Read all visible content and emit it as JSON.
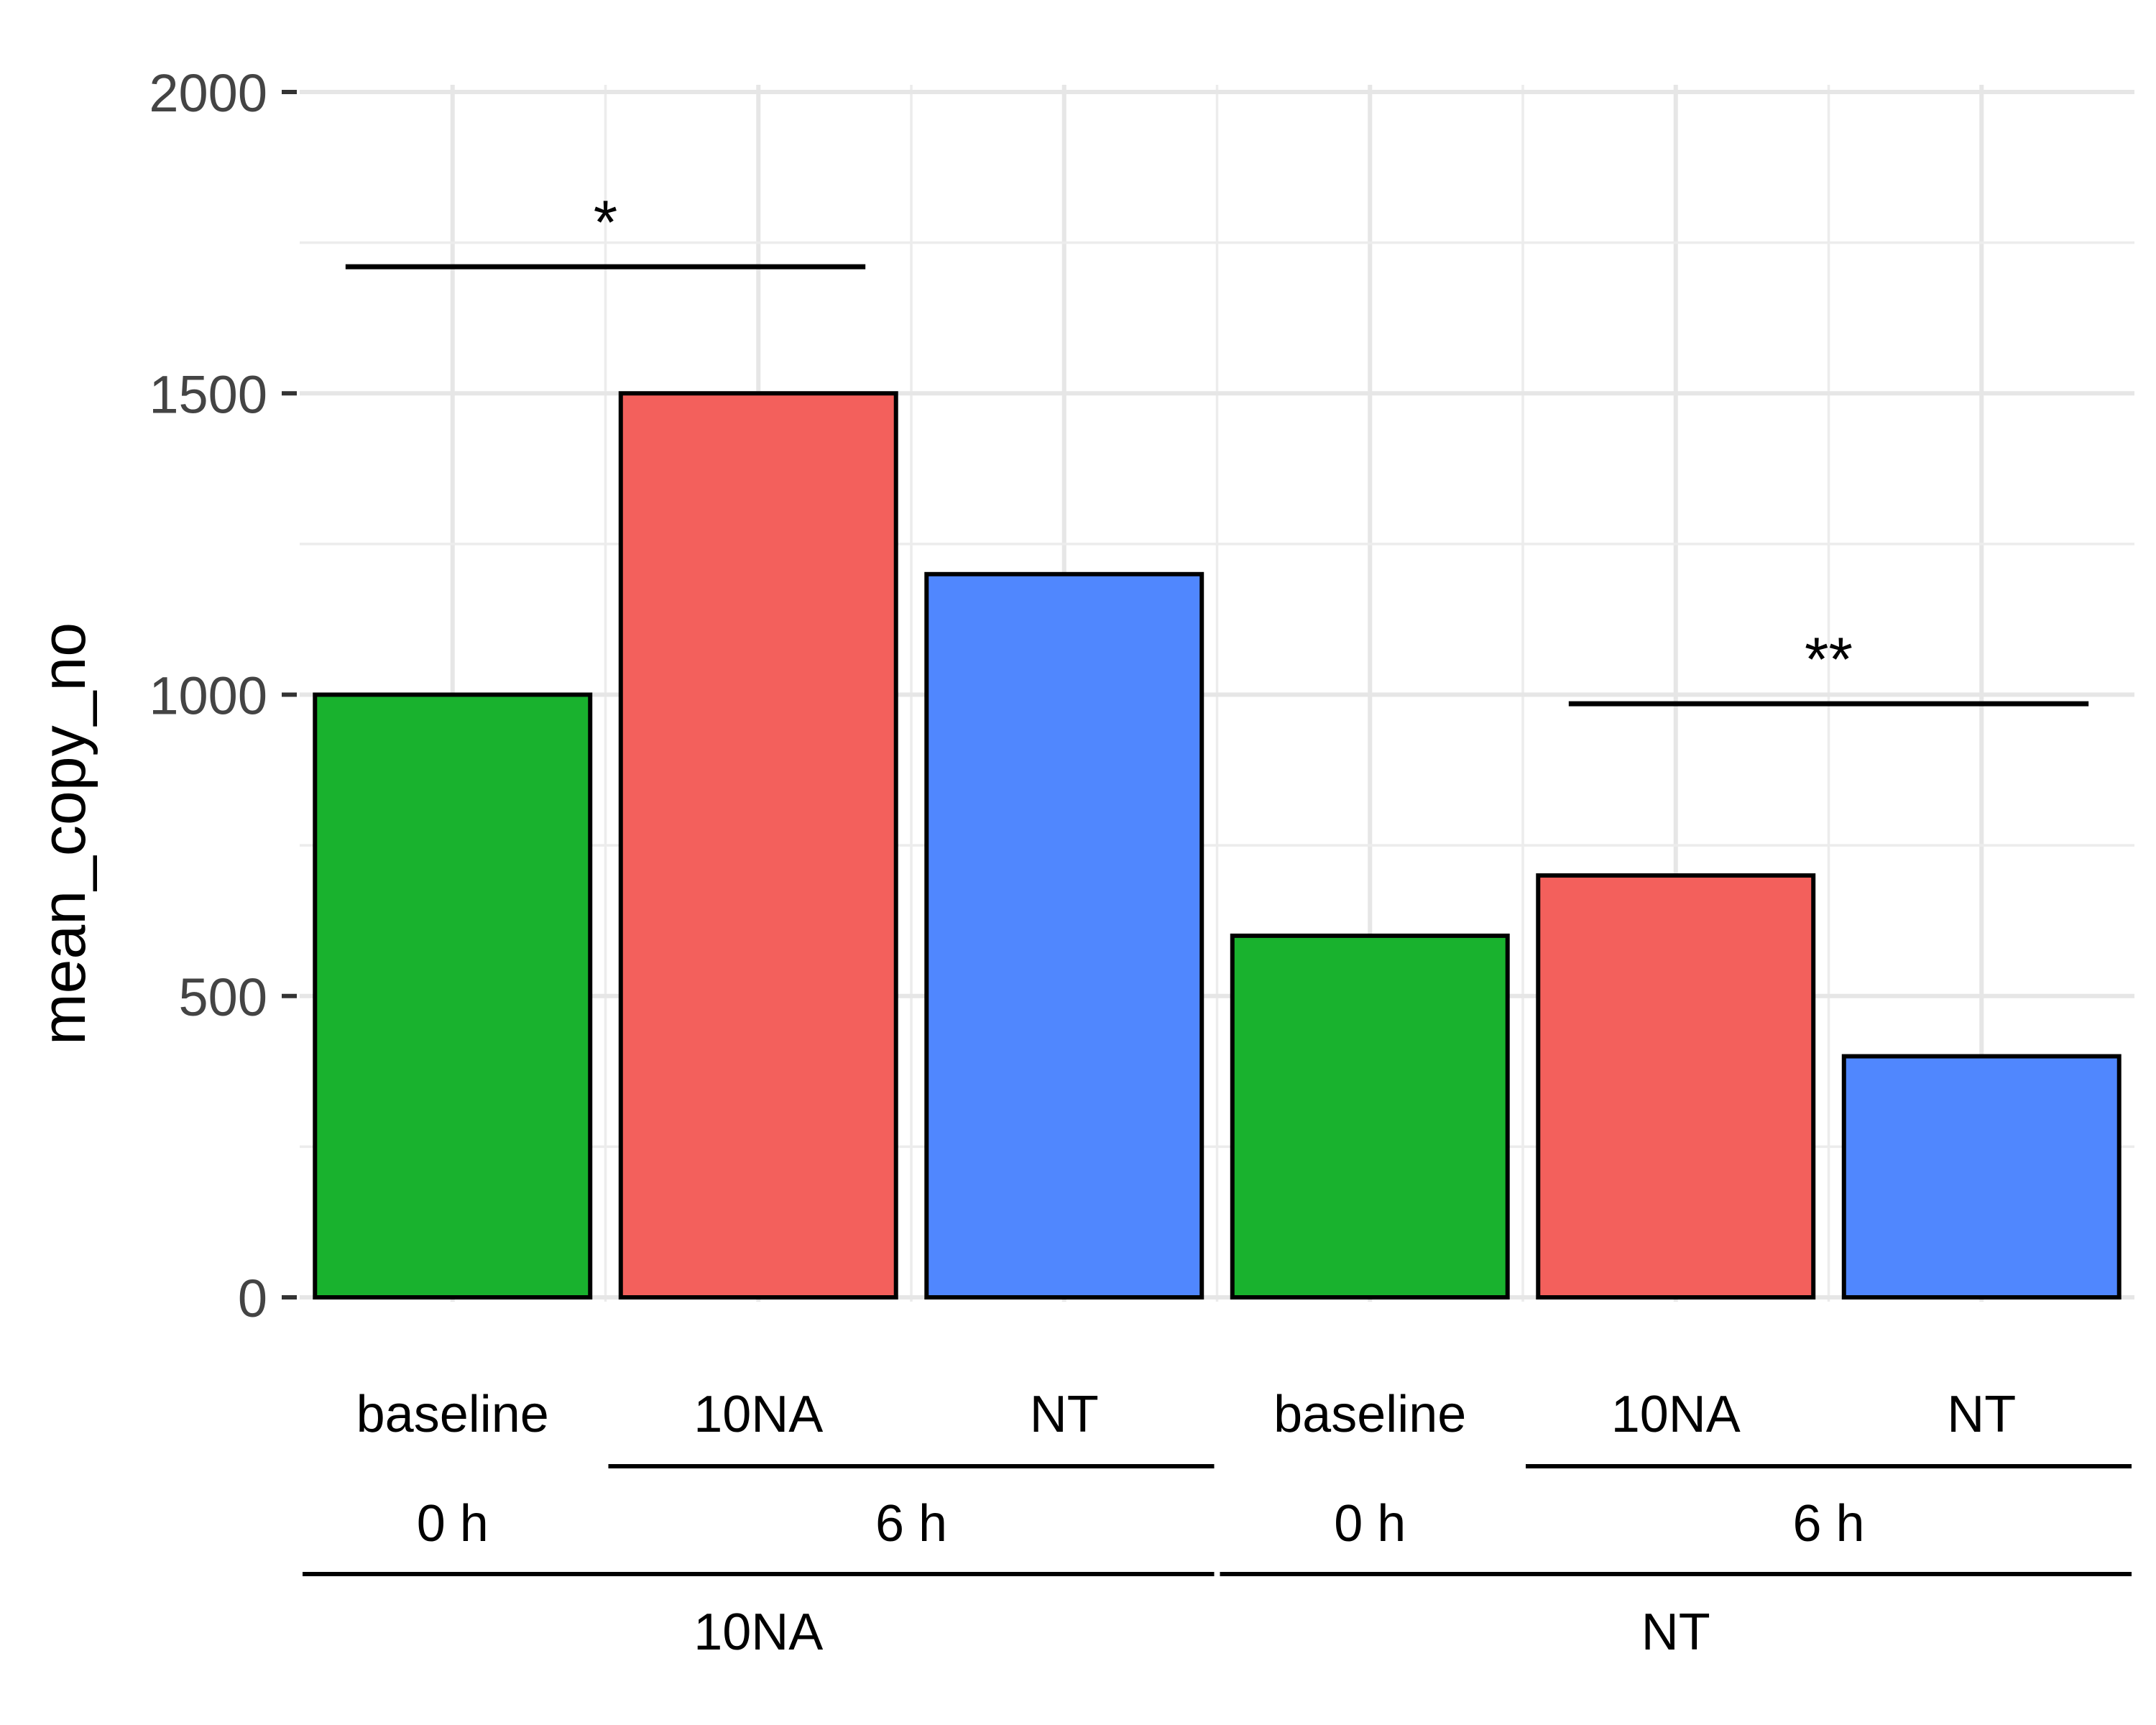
{
  "chart_data": {
    "type": "bar",
    "title": "",
    "xlabel": "",
    "ylabel": "mean_copy_no",
    "ylim": [
      0,
      2000
    ],
    "yticks": [
      0,
      500,
      1000,
      1500,
      2000
    ],
    "grid": true,
    "categories": [
      "baseline",
      "10NA",
      "NT",
      "baseline",
      "10NA",
      "NT"
    ],
    "values": [
      1000,
      1500,
      1200,
      600,
      700,
      400
    ],
    "bar_colors": [
      "#19b22e",
      "#f3605c",
      "#5087fe",
      "#19b22e",
      "#f3605c",
      "#5087fe"
    ],
    "time_groups": [
      {
        "label": "0 h",
        "from": 0,
        "to": 0
      },
      {
        "label": "6 h",
        "from": 1,
        "to": 2
      },
      {
        "label": "0 h",
        "from": 3,
        "to": 3
      },
      {
        "label": "6 h",
        "from": 4,
        "to": 5
      }
    ],
    "treatment_groups": [
      {
        "label": "10NA",
        "from": 0,
        "to": 2
      },
      {
        "label": "NT",
        "from": 3,
        "to": 5
      }
    ],
    "annotations": [
      {
        "text": "*",
        "from": 0,
        "to": 1,
        "y": 1710
      },
      {
        "text": "**",
        "from": 4,
        "to": 5,
        "y": 985
      }
    ]
  }
}
